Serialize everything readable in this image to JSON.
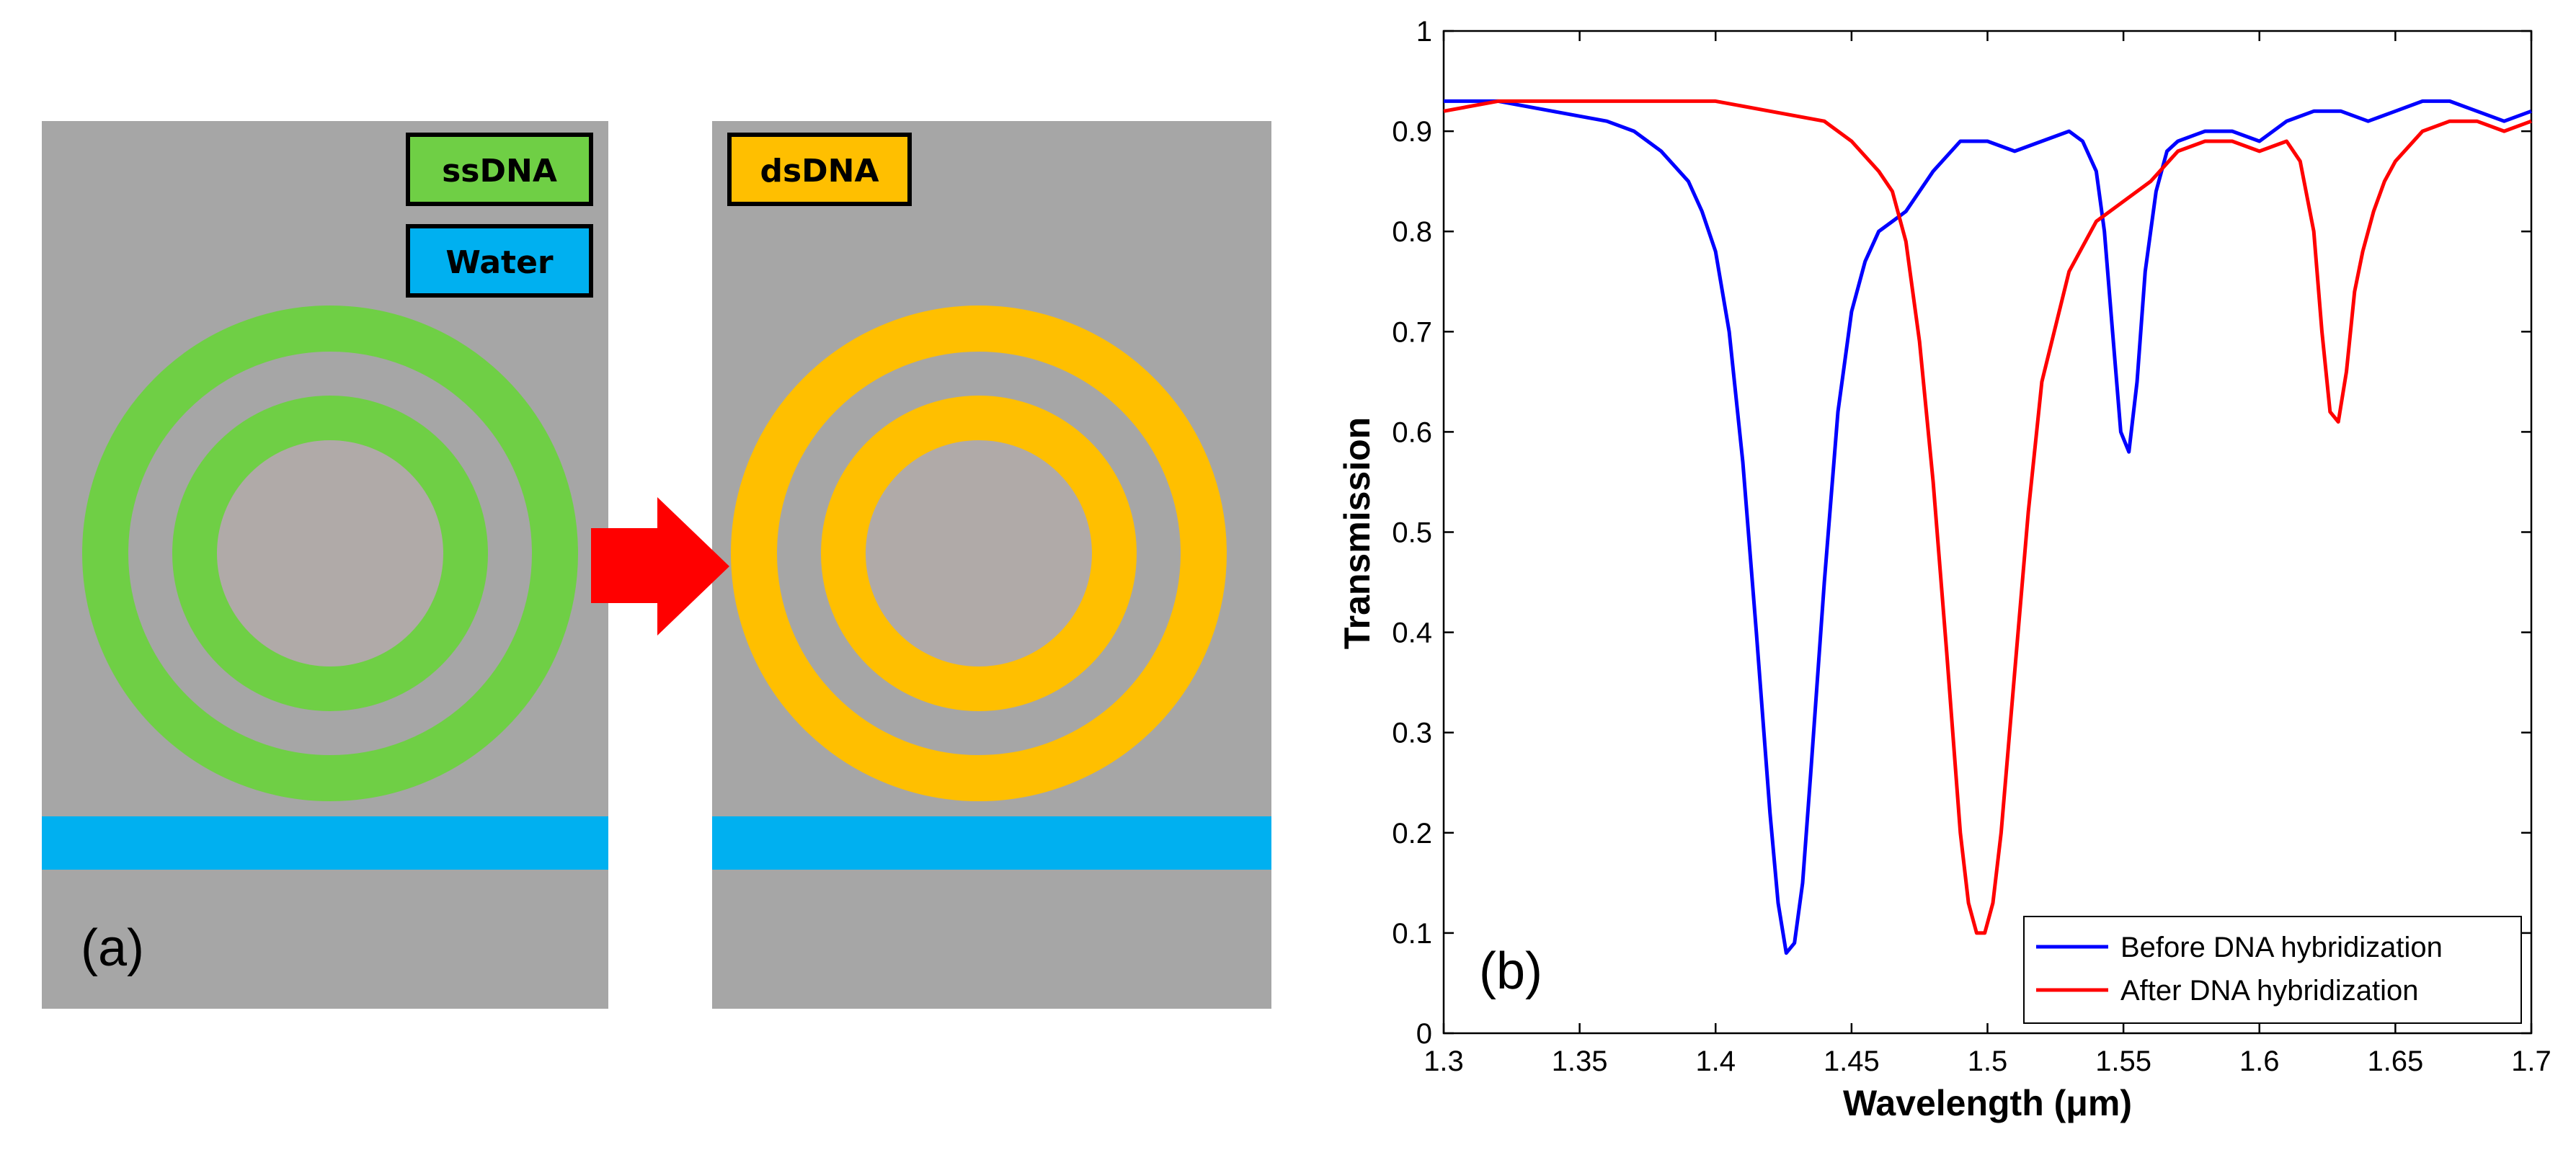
{
  "panel_a": {
    "label": "(a)",
    "legend": [
      {
        "key": "ssdna",
        "text": "ssDNA",
        "color": "#6fcf45"
      },
      {
        "key": "water",
        "text": "Water",
        "color": "#00b0f0"
      },
      {
        "key": "dsdna",
        "text": "dsDNA",
        "color": "#ffbf00"
      }
    ],
    "colors": {
      "background": "#a6a6a6",
      "core": "#b0aaa8",
      "ssdna": "#6fcf45",
      "dsdna": "#ffbf00",
      "waveguide": "#00b0f0",
      "arrow": "#ff0000"
    }
  },
  "chart_data": {
    "type": "line",
    "panel_label": "(b)",
    "xlabel": "Wavelength (μm)",
    "ylabel": "Transmission",
    "xlim": [
      1.3,
      1.7
    ],
    "ylim": [
      0,
      1
    ],
    "xticks": [
      1.3,
      1.35,
      1.4,
      1.45,
      1.5,
      1.55,
      1.6,
      1.65,
      1.7
    ],
    "xtick_labels": [
      "1.3",
      "1.35",
      "1.4",
      "1.45",
      "1.5",
      "1.55",
      "1.6",
      "1.65",
      "1.7"
    ],
    "yticks": [
      0,
      0.1,
      0.2,
      0.3,
      0.4,
      0.5,
      0.6,
      0.7,
      0.8,
      0.9,
      1
    ],
    "ytick_labels": [
      "0",
      "0.1",
      "0.2",
      "0.3",
      "0.4",
      "0.5",
      "0.6",
      "0.7",
      "0.8",
      "0.9",
      "1"
    ],
    "legend_position": "bottom-right",
    "series": [
      {
        "name": "Before DNA hybridization",
        "color": "#0000ff",
        "x": [
          1.3,
          1.32,
          1.34,
          1.36,
          1.37,
          1.38,
          1.39,
          1.395,
          1.4,
          1.405,
          1.41,
          1.415,
          1.42,
          1.423,
          1.426,
          1.429,
          1.432,
          1.435,
          1.44,
          1.445,
          1.45,
          1.455,
          1.46,
          1.465,
          1.47,
          1.48,
          1.49,
          1.5,
          1.51,
          1.52,
          1.53,
          1.535,
          1.54,
          1.543,
          1.546,
          1.549,
          1.552,
          1.555,
          1.558,
          1.562,
          1.566,
          1.57,
          1.58,
          1.59,
          1.6,
          1.61,
          1.62,
          1.63,
          1.64,
          1.65,
          1.66,
          1.67,
          1.68,
          1.69,
          1.7
        ],
        "y": [
          0.93,
          0.93,
          0.92,
          0.91,
          0.9,
          0.88,
          0.85,
          0.82,
          0.78,
          0.7,
          0.57,
          0.4,
          0.22,
          0.13,
          0.08,
          0.09,
          0.15,
          0.26,
          0.45,
          0.62,
          0.72,
          0.77,
          0.8,
          0.81,
          0.82,
          0.86,
          0.89,
          0.89,
          0.88,
          0.89,
          0.9,
          0.89,
          0.86,
          0.8,
          0.7,
          0.6,
          0.58,
          0.65,
          0.76,
          0.84,
          0.88,
          0.89,
          0.9,
          0.9,
          0.89,
          0.91,
          0.92,
          0.92,
          0.91,
          0.92,
          0.93,
          0.93,
          0.92,
          0.91,
          0.92
        ]
      },
      {
        "name": "After DNA hybridization",
        "color": "#ff0000",
        "x": [
          1.3,
          1.32,
          1.34,
          1.36,
          1.38,
          1.4,
          1.42,
          1.44,
          1.45,
          1.46,
          1.465,
          1.47,
          1.475,
          1.48,
          1.485,
          1.49,
          1.493,
          1.496,
          1.499,
          1.502,
          1.505,
          1.51,
          1.515,
          1.52,
          1.53,
          1.54,
          1.55,
          1.56,
          1.57,
          1.58,
          1.59,
          1.6,
          1.61,
          1.615,
          1.62,
          1.623,
          1.626,
          1.629,
          1.632,
          1.635,
          1.638,
          1.642,
          1.646,
          1.65,
          1.66,
          1.67,
          1.68,
          1.69,
          1.7
        ],
        "y": [
          0.92,
          0.93,
          0.93,
          0.93,
          0.93,
          0.93,
          0.92,
          0.91,
          0.89,
          0.86,
          0.84,
          0.79,
          0.69,
          0.55,
          0.38,
          0.2,
          0.13,
          0.1,
          0.1,
          0.13,
          0.2,
          0.36,
          0.52,
          0.65,
          0.76,
          0.81,
          0.83,
          0.85,
          0.88,
          0.89,
          0.89,
          0.88,
          0.89,
          0.87,
          0.8,
          0.7,
          0.62,
          0.61,
          0.66,
          0.74,
          0.78,
          0.82,
          0.85,
          0.87,
          0.9,
          0.91,
          0.91,
          0.9,
          0.91
        ]
      }
    ]
  }
}
